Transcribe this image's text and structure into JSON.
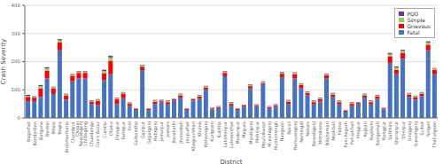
{
  "chart_data": {
    "type": "bar",
    "stacked": true,
    "xlabel": "District",
    "ylabel": "Crash Severity",
    "categories": [
      "Bagerhat",
      "Bandarban",
      "Barguna",
      "Barisal",
      "Bhola",
      "Bogra",
      "Brahmanbaria",
      "Chandpur",
      "Chapai\nNawabganj",
      "Chittagong",
      "Chuadanga",
      "Cox's Bazar",
      "Cumilla",
      "Dhaka",
      "Dinajpur",
      "Faridpur",
      "Feni",
      "Gaibandha",
      "Gazipur",
      "Gopalganj",
      "Habiganj",
      "Jamalpur",
      "Jessore",
      "Jhalakathi",
      "Jhenaidah",
      "Joypurhat",
      "Khagrachhari",
      "Khulna",
      "Kishoreganj",
      "Kurigram",
      "Kushtia",
      "Lakshmipur",
      "Lalmonirhat",
      "Madaripur",
      "Magura",
      "Manikganj",
      "Meherpur",
      "Moulvibazar",
      "Munshiganj",
      "Mymensingh",
      "Naogaon",
      "Narail",
      "Narayanganj",
      "Narsingdi",
      "Natore",
      "Nawabganj",
      "Netrokona",
      "Nilphamari",
      "Noakhali",
      "Pabna",
      "Panchagarh",
      "Patuakhali",
      "Pirojpur",
      "Rajbari",
      "Rajshahi",
      "Rangamati",
      "Rangpur",
      "Satkhira",
      "Shariatpur",
      "Sherpur",
      "Sirajganj",
      "Sunamganj",
      "Sylhet",
      "Tangail",
      "Thakurgaon"
    ],
    "series": [
      {
        "name": "Fatal",
        "color": "#4472C4",
        "values": [
          60,
          60,
          75,
          140,
          85,
          240,
          65,
          130,
          140,
          140,
          50,
          45,
          135,
          155,
          50,
          70,
          42,
          28,
          170,
          28,
          50,
          58,
          48,
          62,
          72,
          28,
          62,
          68,
          100,
          30,
          35,
          148,
          42,
          28,
          40,
          105,
          42,
          120,
          35,
          42,
          145,
          50,
          140,
          105,
          80,
          48,
          58,
          140,
          75,
          48,
          22,
          42,
          50,
          72,
          48,
          68,
          30,
          195,
          155,
          210,
          75,
          65,
          78,
          240,
          155
        ]
      },
      {
        "name": "Grievous",
        "color": "#FF0000",
        "values": [
          15,
          12,
          30,
          28,
          20,
          28,
          15,
          20,
          20,
          20,
          8,
          16,
          24,
          48,
          16,
          16,
          8,
          4,
          12,
          4,
          8,
          4,
          8,
          4,
          8,
          4,
          4,
          8,
          8,
          4,
          4,
          12,
          8,
          4,
          4,
          8,
          4,
          4,
          4,
          4,
          12,
          8,
          16,
          12,
          8,
          8,
          8,
          12,
          8,
          8,
          4,
          8,
          4,
          8,
          8,
          8,
          4,
          24,
          16,
          20,
          8,
          8,
          8,
          20,
          16
        ]
      },
      {
        "name": "Simple",
        "color": "#92D050",
        "values": [
          4,
          3,
          8,
          8,
          4,
          8,
          4,
          4,
          4,
          4,
          3,
          4,
          8,
          12,
          4,
          4,
          3,
          2,
          4,
          2,
          4,
          2,
          4,
          2,
          4,
          2,
          2,
          4,
          4,
          2,
          2,
          4,
          4,
          2,
          2,
          4,
          2,
          4,
          2,
          2,
          4,
          4,
          4,
          4,
          4,
          4,
          4,
          4,
          4,
          4,
          2,
          4,
          2,
          4,
          4,
          4,
          2,
          8,
          8,
          8,
          4,
          4,
          4,
          8,
          4
        ]
      },
      {
        "name": "PDO",
        "color": "#7030A0",
        "values": [
          3,
          2,
          4,
          4,
          2,
          4,
          2,
          2,
          2,
          2,
          2,
          2,
          4,
          6,
          2,
          2,
          2,
          1,
          2,
          1,
          2,
          1,
          2,
          1,
          2,
          1,
          1,
          2,
          2,
          1,
          1,
          2,
          2,
          1,
          1,
          2,
          1,
          2,
          1,
          1,
          2,
          2,
          2,
          2,
          2,
          2,
          2,
          2,
          2,
          2,
          1,
          2,
          1,
          2,
          2,
          2,
          1,
          4,
          4,
          4,
          2,
          2,
          2,
          4,
          2
        ]
      }
    ],
    "ylim": [
      0,
      400
    ],
    "yticks": [
      0,
      100,
      200,
      300,
      400
    ],
    "grid": true,
    "legend": "upper right"
  }
}
